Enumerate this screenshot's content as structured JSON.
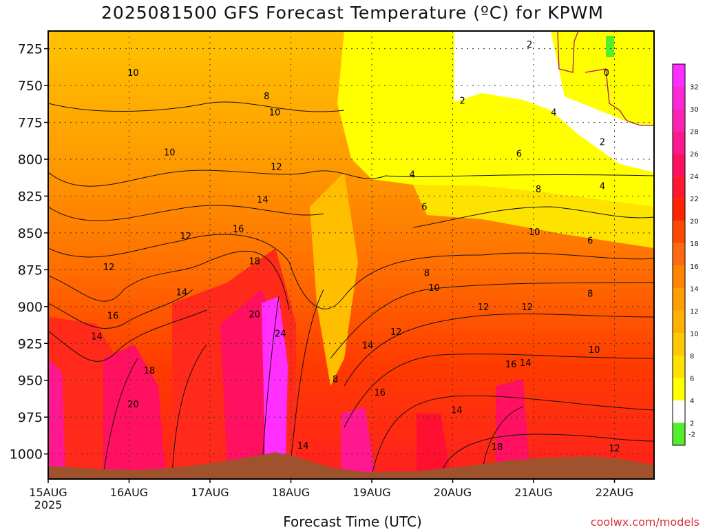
{
  "chart_data": {
    "type": "heatmap",
    "title": "2025081500 GFS Forecast Temperature (ºC) for KPWM",
    "xlabel": "Forecast Time (UTC)",
    "ylabel": "",
    "year_label": "2025",
    "x_ticks": [
      {
        "label": "15AUG",
        "day": 0
      },
      {
        "label": "16AUG",
        "day": 1
      },
      {
        "label": "17AUG",
        "day": 2
      },
      {
        "label": "18AUG",
        "day": 3
      },
      {
        "label": "19AUG",
        "day": 4
      },
      {
        "label": "20AUG",
        "day": 5
      },
      {
        "label": "21AUG",
        "day": 6
      },
      {
        "label": "22AUG",
        "day": 7
      }
    ],
    "xlim_days": [
      0,
      7.5
    ],
    "y_ticks": [
      725,
      750,
      775,
      800,
      825,
      850,
      875,
      900,
      925,
      950,
      975,
      1000
    ],
    "ylim_hpa": [
      1017,
      713
    ],
    "grid": true,
    "colorbar": {
      "levels": [
        -2,
        2,
        4,
        6,
        8,
        10,
        12,
        14,
        16,
        18,
        20,
        22,
        24,
        26,
        28,
        30,
        32
      ],
      "colors": [
        "#55ee2a",
        "#ffffff",
        "#ffff00",
        "#ffe000",
        "#ffc800",
        "#ffb000",
        "#ff9e00",
        "#ff8400",
        "#ff6a10",
        "#ff4a00",
        "#ff2400",
        "#ff1830",
        "#ff1060",
        "#ff1890",
        "#ff22b4",
        "#ff28d8",
        "#ff30ff"
      ],
      "labels": [
        "-2",
        "2",
        "4",
        "6",
        "8",
        "10",
        "12",
        "14",
        "16",
        "18",
        "20",
        "22",
        "24",
        "26",
        "28",
        "30",
        "32"
      ]
    },
    "annotations": [
      {
        "text": "2",
        "day": 5.95,
        "p": 722
      },
      {
        "text": "0",
        "day": 6.9,
        "p": 741
      },
      {
        "text": "2",
        "day": 5.12,
        "p": 760
      },
      {
        "text": "4",
        "day": 6.25,
        "p": 768
      },
      {
        "text": "2",
        "day": 6.85,
        "p": 788
      },
      {
        "text": "4",
        "day": 6.85,
        "p": 818
      },
      {
        "text": "6",
        "day": 5.82,
        "p": 796
      },
      {
        "text": "8",
        "day": 6.06,
        "p": 820
      },
      {
        "text": "10",
        "day": 1.05,
        "p": 741
      },
      {
        "text": "8",
        "day": 2.7,
        "p": 757
      },
      {
        "text": "10",
        "day": 2.8,
        "p": 768
      },
      {
        "text": "10",
        "day": 1.5,
        "p": 795
      },
      {
        "text": "12",
        "day": 2.82,
        "p": 805
      },
      {
        "text": "4",
        "day": 4.5,
        "p": 810
      },
      {
        "text": "14",
        "day": 2.65,
        "p": 827
      },
      {
        "text": "6",
        "day": 4.65,
        "p": 832
      },
      {
        "text": "16",
        "day": 2.35,
        "p": 847
      },
      {
        "text": "12",
        "day": 1.7,
        "p": 852
      },
      {
        "text": "10",
        "day": 6.01,
        "p": 849
      },
      {
        "text": "6",
        "day": 6.7,
        "p": 855
      },
      {
        "text": "18",
        "day": 2.55,
        "p": 869
      },
      {
        "text": "12",
        "day": 0.75,
        "p": 873
      },
      {
        "text": "8",
        "day": 4.68,
        "p": 877
      },
      {
        "text": "14",
        "day": 1.65,
        "p": 890
      },
      {
        "text": "10",
        "day": 4.77,
        "p": 887
      },
      {
        "text": "16",
        "day": 0.8,
        "p": 906
      },
      {
        "text": "20",
        "day": 2.55,
        "p": 905
      },
      {
        "text": "24",
        "day": 2.87,
        "p": 918
      },
      {
        "text": "12",
        "day": 5.38,
        "p": 900
      },
      {
        "text": "12",
        "day": 5.92,
        "p": 900
      },
      {
        "text": "8",
        "day": 6.7,
        "p": 891
      },
      {
        "text": "14",
        "day": 0.6,
        "p": 920
      },
      {
        "text": "12",
        "day": 4.3,
        "p": 917
      },
      {
        "text": "14",
        "day": 3.95,
        "p": 926
      },
      {
        "text": "8",
        "day": 3.55,
        "p": 949
      },
      {
        "text": "18",
        "day": 1.25,
        "p": 943
      },
      {
        "text": "10",
        "day": 6.75,
        "p": 929
      },
      {
        "text": "16",
        "day": 5.72,
        "p": 939
      },
      {
        "text": "14",
        "day": 5.9,
        "p": 938
      },
      {
        "text": "16",
        "day": 4.1,
        "p": 958
      },
      {
        "text": "20",
        "day": 1.05,
        "p": 966
      },
      {
        "text": "14",
        "day": 5.05,
        "p": 970
      },
      {
        "text": "14",
        "day": 3.15,
        "p": 994
      },
      {
        "text": "18",
        "day": 5.55,
        "p": 995
      },
      {
        "text": "12",
        "day": 7.0,
        "p": 996
      }
    ]
  },
  "credit": "coolwx.com/models"
}
